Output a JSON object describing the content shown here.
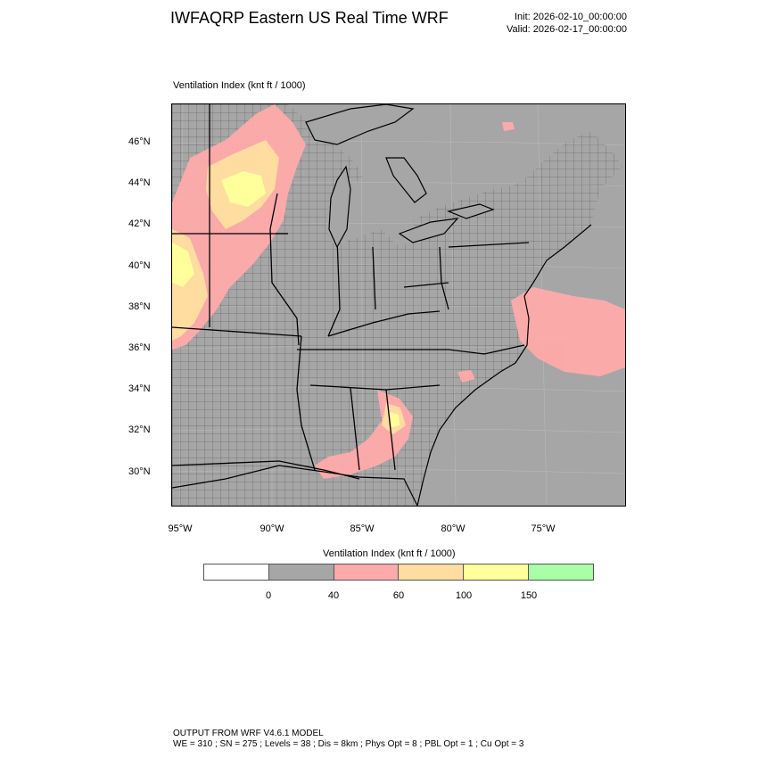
{
  "header": {
    "title": "IWFAQRP Eastern US Real Time WRF",
    "init": "Init: 2026-02-10_00:00:00",
    "valid": "Valid: 2026-02-17_00:00:00"
  },
  "map": {
    "field_label": "Ventilation Index   (knt ft / 1000)",
    "lat_labels": [
      "46°N",
      "44°N",
      "42°N",
      "40°N",
      "38°N",
      "36°N",
      "34°N",
      "32°N",
      "30°N"
    ],
    "lon_labels": [
      "95°W",
      "90°W",
      "85°W",
      "80°W",
      "75°W"
    ],
    "colors": {
      "background": "#a6a6a6",
      "land_low": "#a6a6a6",
      "pink": "#ffaaaa",
      "orange": "#ffdca0",
      "yellow": "#ffff9c",
      "boundary": "#000000"
    }
  },
  "colorbar": {
    "title": "Ventilation Index  (knt ft / 1000)",
    "colors": [
      "#ffffff",
      "#a6a6a6",
      "#ffaaaa",
      "#ffdca0",
      "#ffff9c",
      "#a8ffa8"
    ],
    "ticks": [
      "0",
      "40",
      "60",
      "100",
      "150"
    ]
  },
  "footer": {
    "line1": "OUTPUT FROM WRF V4.6.1 MODEL",
    "line2": "WE = 310 ; SN = 275 ; Levels = 38 ; Dis = 8km ; Phys Opt = 8 ; PBL Opt = 1 ; Cu Opt = 3"
  }
}
